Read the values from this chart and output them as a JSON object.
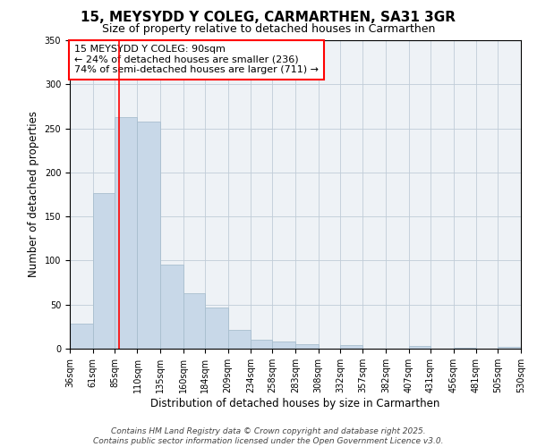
{
  "title": "15, MEYSYDD Y COLEG, CARMARTHEN, SA31 3GR",
  "subtitle": "Size of property relative to detached houses in Carmarthen",
  "xlabel": "Distribution of detached houses by size in Carmarthen",
  "ylabel": "Number of detached properties",
  "bar_color": "#c8d8e8",
  "bar_edgecolor": "#a8bece",
  "background_color": "#eef2f6",
  "grid_color": "#c0ccd8",
  "vline_x": 90,
  "vline_color": "red",
  "annotation_line1": "15 MEYSYDD Y COLEG: 90sqm",
  "annotation_line2": "← 24% of detached houses are smaller (236)",
  "annotation_line3": "74% of semi-detached houses are larger (711) →",
  "annotation_box_edgecolor": "red",
  "annotation_box_facecolor": "white",
  "bins": [
    36,
    61,
    85,
    110,
    135,
    160,
    184,
    209,
    234,
    258,
    283,
    308,
    332,
    357,
    382,
    407,
    431,
    456,
    481,
    505,
    530
  ],
  "counts": [
    28,
    177,
    263,
    258,
    95,
    63,
    47,
    21,
    10,
    8,
    5,
    0,
    4,
    0,
    0,
    3,
    0,
    1,
    0,
    2
  ],
  "ylim": [
    0,
    350
  ],
  "yticks": [
    0,
    50,
    100,
    150,
    200,
    250,
    300,
    350
  ],
  "footer_line1": "Contains HM Land Registry data © Crown copyright and database right 2025.",
  "footer_line2": "Contains public sector information licensed under the Open Government Licence v3.0.",
  "title_fontsize": 11,
  "subtitle_fontsize": 9,
  "axis_label_fontsize": 8.5,
  "tick_fontsize": 7,
  "annotation_fontsize": 8,
  "footer_fontsize": 6.5
}
